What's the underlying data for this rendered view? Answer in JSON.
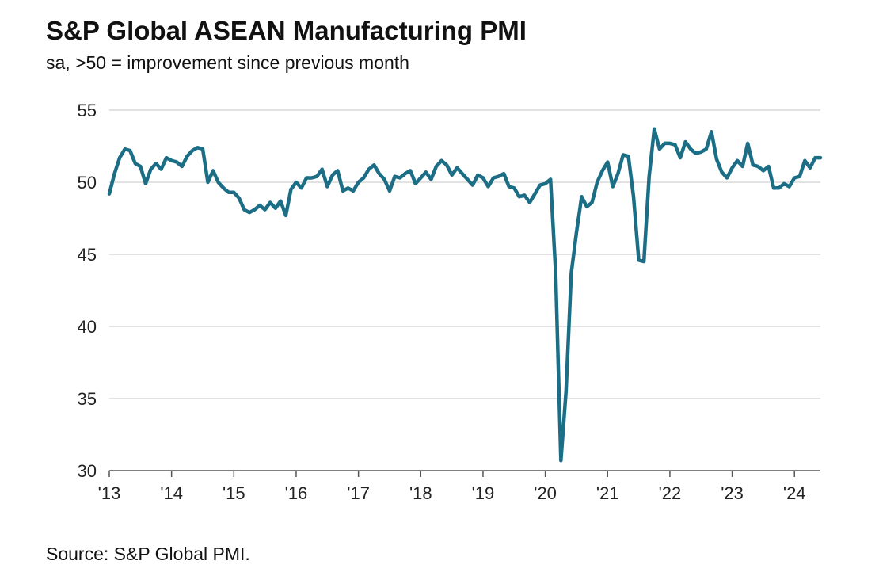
{
  "title": "S&P Global ASEAN Manufacturing PMI",
  "subtitle": "sa, >50 = improvement since previous month",
  "source": "Source: S&P Global PMI.",
  "colors": {
    "line": "#1b6e85",
    "grid": "#d9d9d9",
    "axis": "#555555"
  },
  "chart_data": {
    "type": "line",
    "title": "S&P Global ASEAN Manufacturing PMI",
    "subtitle": "sa, >50 = improvement since previous month",
    "xlabel": "",
    "ylabel": "",
    "ylim": [
      30,
      55
    ],
    "yticks": [
      30,
      35,
      40,
      45,
      50,
      55
    ],
    "xlim": [
      "2013-01",
      "2024-06"
    ],
    "xtick_labels": [
      "'13",
      "'14",
      "'15",
      "'16",
      "'17",
      "'18",
      "'19",
      "'20",
      "'21",
      "'22",
      "'23",
      "'24"
    ],
    "grid": true,
    "legend": "none",
    "series": [
      {
        "x": [
          "2013-01",
          "2013-02",
          "2013-03",
          "2013-04",
          "2013-05",
          "2013-06",
          "2013-07",
          "2013-08",
          "2013-09",
          "2013-10",
          "2013-11",
          "2013-12",
          "2014-01",
          "2014-02",
          "2014-03",
          "2014-04",
          "2014-05",
          "2014-06",
          "2014-07",
          "2014-08",
          "2014-09",
          "2014-10",
          "2014-11",
          "2014-12",
          "2015-01",
          "2015-02",
          "2015-03",
          "2015-04",
          "2015-05",
          "2015-06",
          "2015-07",
          "2015-08",
          "2015-09",
          "2015-10",
          "2015-11",
          "2015-12",
          "2016-01",
          "2016-02",
          "2016-03",
          "2016-04",
          "2016-05",
          "2016-06",
          "2016-07",
          "2016-08",
          "2016-09",
          "2016-10",
          "2016-11",
          "2016-12",
          "2017-01",
          "2017-02",
          "2017-03",
          "2017-04",
          "2017-05",
          "2017-06",
          "2017-07",
          "2017-08",
          "2017-09",
          "2017-10",
          "2017-11",
          "2017-12",
          "2018-01",
          "2018-02",
          "2018-03",
          "2018-04",
          "2018-05",
          "2018-06",
          "2018-07",
          "2018-08",
          "2018-09",
          "2018-10",
          "2018-11",
          "2018-12",
          "2019-01",
          "2019-02",
          "2019-03",
          "2019-04",
          "2019-05",
          "2019-06",
          "2019-07",
          "2019-08",
          "2019-09",
          "2019-10",
          "2019-11",
          "2019-12",
          "2020-01",
          "2020-02",
          "2020-03",
          "2020-04",
          "2020-05",
          "2020-06",
          "2020-07",
          "2020-08",
          "2020-09",
          "2020-10",
          "2020-11",
          "2020-12",
          "2021-01",
          "2021-02",
          "2021-03",
          "2021-04",
          "2021-05",
          "2021-06",
          "2021-07",
          "2021-08",
          "2021-09",
          "2021-10",
          "2021-11",
          "2021-12",
          "2022-01",
          "2022-02",
          "2022-03",
          "2022-04",
          "2022-05",
          "2022-06",
          "2022-07",
          "2022-08",
          "2022-09",
          "2022-10",
          "2022-11",
          "2022-12",
          "2023-01",
          "2023-02",
          "2023-03",
          "2023-04",
          "2023-05",
          "2023-06",
          "2023-07",
          "2023-08",
          "2023-09",
          "2023-10",
          "2023-11",
          "2023-12",
          "2024-01",
          "2024-02",
          "2024-03",
          "2024-04",
          "2024-05",
          "2024-06"
        ],
        "values": [
          49.2,
          50.6,
          51.7,
          52.3,
          52.2,
          51.3,
          51.1,
          49.9,
          50.9,
          51.3,
          50.9,
          51.7,
          51.5,
          51.4,
          51.1,
          51.8,
          52.2,
          52.4,
          52.3,
          50.0,
          50.8,
          50.0,
          49.6,
          49.3,
          49.3,
          48.9,
          48.1,
          47.9,
          48.1,
          48.4,
          48.1,
          48.6,
          48.2,
          48.7,
          47.7,
          49.5,
          50.0,
          49.6,
          50.3,
          50.3,
          50.4,
          50.9,
          49.7,
          50.5,
          50.8,
          49.4,
          49.6,
          49.4,
          50.0,
          50.3,
          50.9,
          51.2,
          50.6,
          50.2,
          49.4,
          50.4,
          50.3,
          50.6,
          50.8,
          49.9,
          50.3,
          50.7,
          50.2,
          51.1,
          51.5,
          51.2,
          50.5,
          51.0,
          50.6,
          50.2,
          49.8,
          50.5,
          50.3,
          49.7,
          50.3,
          50.4,
          50.6,
          49.7,
          49.6,
          49.0,
          49.1,
          48.6,
          49.2,
          49.8,
          49.9,
          50.2,
          43.7,
          30.7,
          35.5,
          43.7,
          46.5,
          49.0,
          48.3,
          48.6,
          50.0,
          50.8,
          51.4,
          49.7,
          50.6,
          51.9,
          51.8,
          49.0,
          44.6,
          44.5,
          50.4,
          53.7,
          52.3,
          52.7,
          52.7,
          52.6,
          51.7,
          52.8,
          52.3,
          52.0,
          52.1,
          52.3,
          53.5,
          51.6,
          50.7,
          50.3,
          51.0,
          51.5,
          51.1,
          52.7,
          51.2,
          51.1,
          50.8,
          51.1,
          49.6,
          49.6,
          49.9,
          49.7,
          50.3,
          50.4,
          51.5,
          51.0,
          51.7,
          51.7
        ]
      }
    ]
  }
}
